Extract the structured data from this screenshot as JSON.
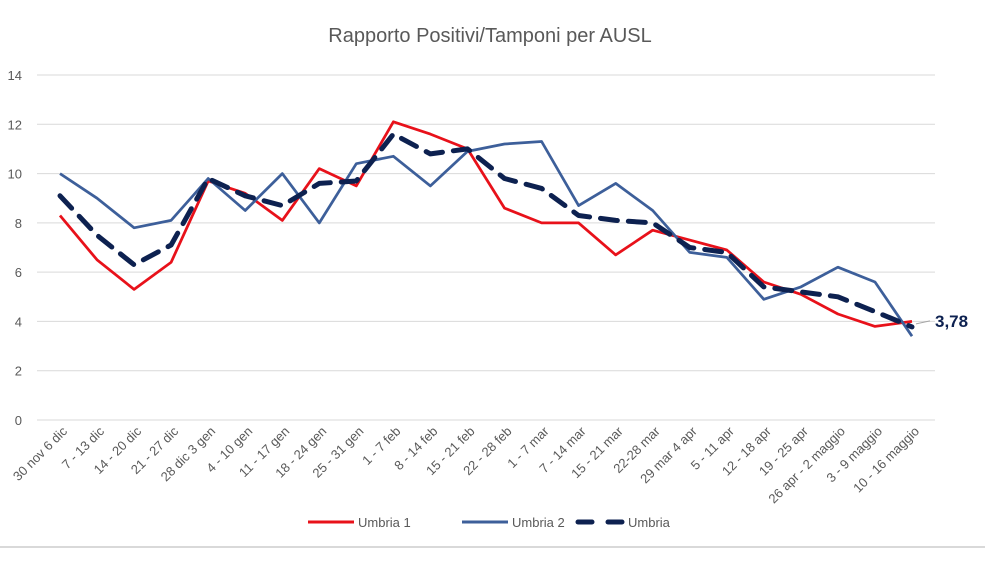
{
  "chart_data": {
    "type": "line",
    "title": "Rapporto Positivi/Tamponi per AUSL",
    "xlabel": "",
    "ylabel": "",
    "ylim": [
      0,
      14
    ],
    "yticks": [
      0,
      2,
      4,
      6,
      8,
      10,
      12,
      14
    ],
    "grid": true,
    "legend_position": "bottom",
    "categories": [
      "30 nov 6 dic",
      "7 - 13 dic",
      "14 - 20 dic",
      "21 - 27 dic",
      "28 dic 3 gen",
      "4 - 10 gen",
      "11 - 17 gen",
      "18 - 24 gen",
      "25 - 31 gen",
      "1 - 7 feb",
      "8 - 14 feb",
      "15 - 21 feb",
      "22 - 28 feb",
      "1 - 7 mar",
      "7 - 14 mar",
      "15 - 21 mar",
      "22-28 mar",
      "29 mar 4 apr",
      "5 - 11 apr",
      "12 - 18 apr",
      "19 - 25 apr",
      "26 apr - 2 maggio",
      "3 - 9 maggio",
      "10 - 16 maggio"
    ],
    "series": [
      {
        "name": "Umbria 1",
        "color": "#e8111a",
        "style": "solid",
        "values": [
          8.3,
          6.5,
          5.3,
          6.4,
          9.7,
          9.2,
          8.1,
          10.2,
          9.5,
          12.1,
          11.6,
          11.0,
          8.6,
          8.0,
          8.0,
          6.7,
          7.7,
          7.3,
          6.9,
          5.6,
          5.1,
          4.3,
          3.8,
          4.0
        ]
      },
      {
        "name": "Umbria 2",
        "color": "#3d5f9a",
        "style": "solid",
        "values": [
          10.0,
          9.0,
          7.8,
          8.1,
          9.8,
          8.5,
          10.0,
          8.0,
          10.4,
          10.7,
          9.5,
          10.9,
          11.2,
          11.3,
          8.7,
          9.6,
          8.5,
          6.8,
          6.6,
          4.9,
          5.4,
          6.2,
          5.6,
          3.4
        ]
      },
      {
        "name": "Umbria",
        "color": "#0d2150",
        "style": "dashed",
        "values": [
          9.1,
          7.5,
          6.3,
          7.1,
          9.8,
          9.1,
          8.7,
          9.6,
          9.7,
          11.6,
          10.8,
          11.0,
          9.8,
          9.4,
          8.3,
          8.1,
          8.0,
          7.0,
          6.8,
          5.4,
          5.2,
          5.0,
          4.4,
          3.78
        ]
      }
    ],
    "annotations": [
      {
        "text": "3,78",
        "series": "Umbria",
        "index": 23,
        "color": "#0d2150"
      }
    ]
  },
  "colors": {
    "grid": "#d9d9d9",
    "axis_text": "#595959",
    "title": "#595959"
  }
}
